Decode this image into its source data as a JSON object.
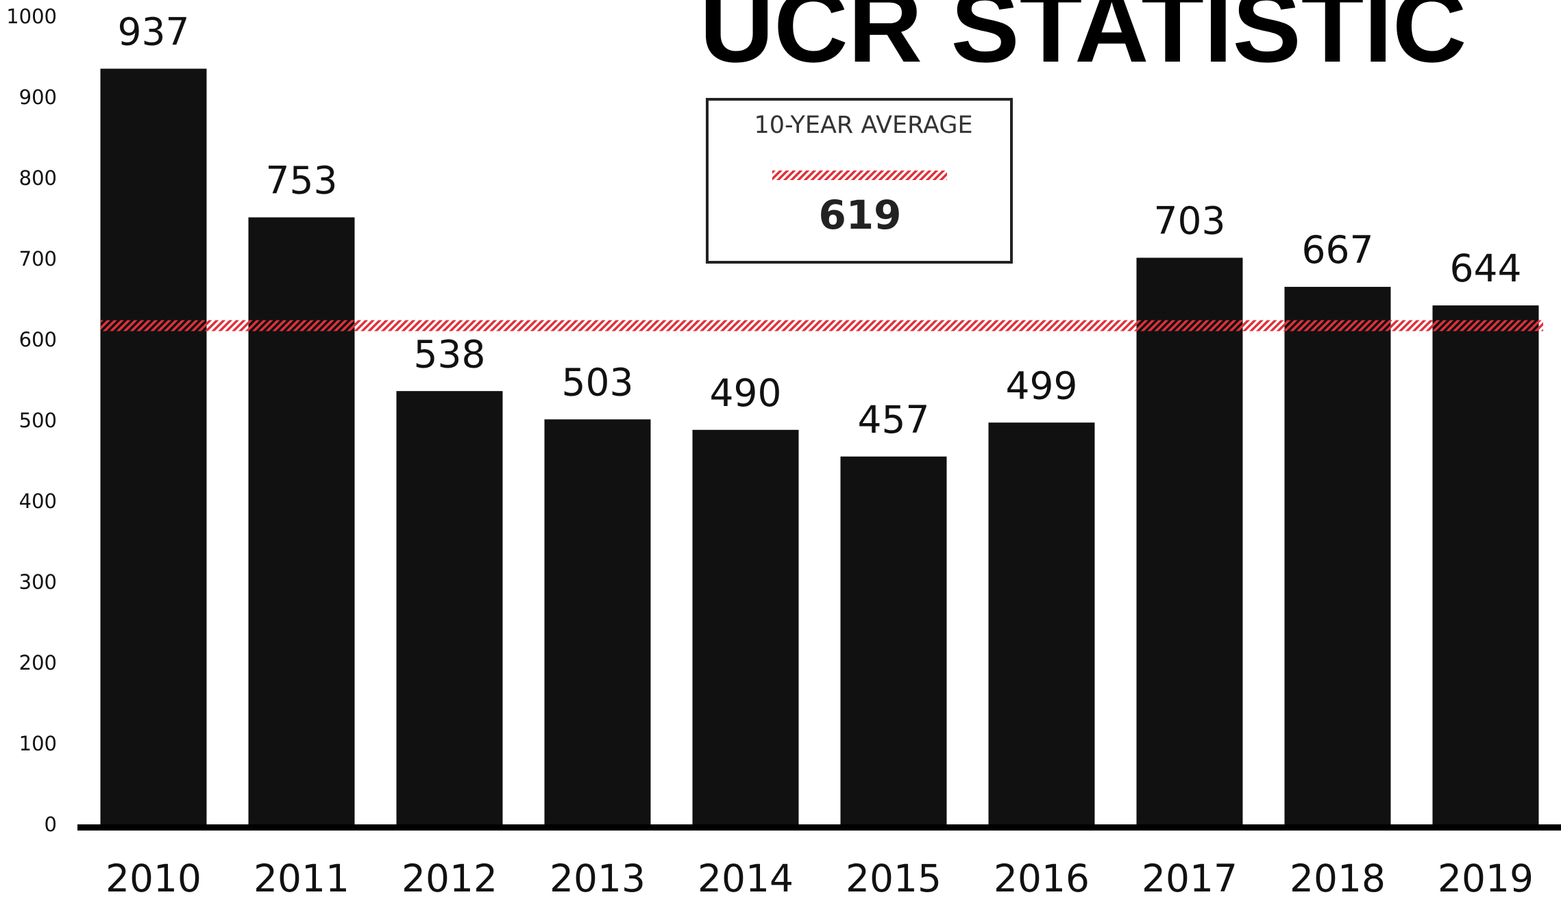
{
  "chart_data": {
    "type": "bar",
    "title": "UCR STATISTIC",
    "categories": [
      "2010",
      "2011",
      "2012",
      "2013",
      "2014",
      "2015",
      "2016",
      "2017",
      "2018",
      "2019"
    ],
    "values": [
      937,
      753,
      538,
      503,
      490,
      457,
      499,
      703,
      667,
      644
    ],
    "color": "#111111",
    "ylim": [
      0,
      1000
    ],
    "yticks": [
      0,
      100,
      200,
      300,
      400,
      500,
      600,
      700,
      800,
      900,
      1000
    ],
    "average": {
      "label": "10-YEAR AVERAGE",
      "value": 619,
      "color": "#e0303a"
    }
  }
}
